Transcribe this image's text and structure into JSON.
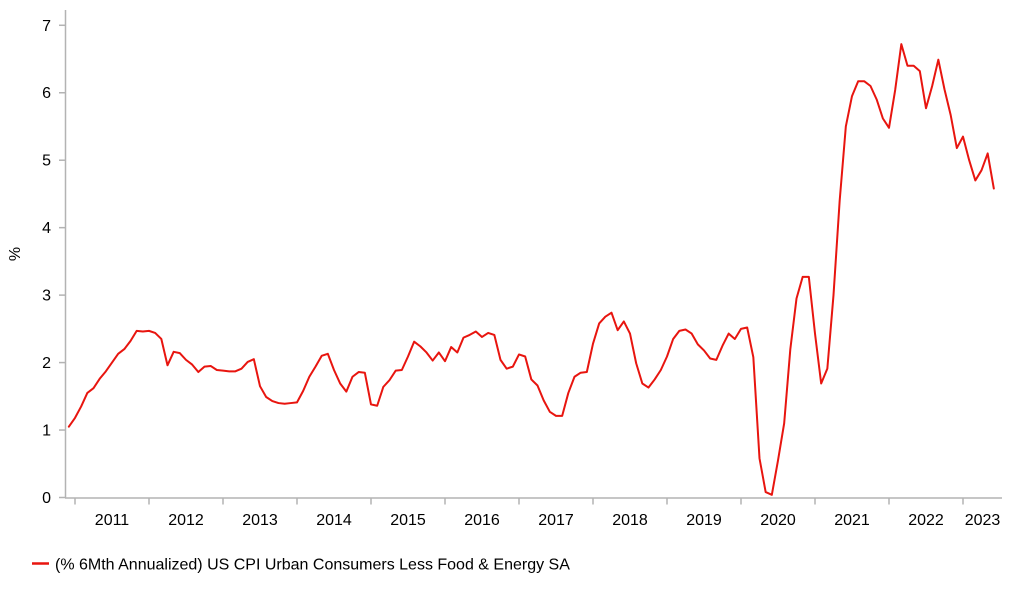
{
  "chart": {
    "y_axis": {
      "title": "%",
      "ticks": [
        0,
        1,
        2,
        3,
        4,
        5,
        6,
        7
      ],
      "min": 0,
      "max": 7
    },
    "x_axis": {
      "years": [
        2011,
        2012,
        2013,
        2014,
        2015,
        2016,
        2017,
        2018,
        2019,
        2020,
        2021,
        2022,
        2023
      ]
    },
    "legend": {
      "label": "(% 6Mth Annualized) US CPI Urban Consumers Less Food & Energy SA",
      "color": "#e8150f"
    },
    "colors": {
      "line": "#e8150f",
      "axis": "#b3b3b3",
      "text": "#000000",
      "background": "#ffffff"
    }
  },
  "chart_data": {
    "type": "line",
    "title": "",
    "xlabel": "",
    "ylabel": "%",
    "ylim": [
      0,
      7
    ],
    "grid": false,
    "legend_position": "bottom-left",
    "frequency": "monthly",
    "start_year": 2010,
    "start_month": 12,
    "end_year": 2023,
    "end_month": 6,
    "x_tick_labels": [
      "2011",
      "2012",
      "2013",
      "2014",
      "2015",
      "2016",
      "2017",
      "2018",
      "2019",
      "2020",
      "2021",
      "2022",
      "2023"
    ],
    "series": [
      {
        "name": "(% 6Mth Annualized) US CPI Urban Consumers Less Food & Energy SA",
        "color": "#e8150f",
        "values": [
          1.05,
          1.18,
          1.35,
          1.55,
          1.62,
          1.76,
          1.87,
          2.0,
          2.13,
          2.2,
          2.32,
          2.47,
          2.46,
          2.47,
          2.44,
          2.35,
          1.96,
          2.16,
          2.14,
          2.04,
          1.97,
          1.86,
          1.94,
          1.95,
          1.89,
          1.88,
          1.87,
          1.87,
          1.91,
          2.01,
          2.05,
          1.65,
          1.49,
          1.43,
          1.4,
          1.39,
          1.4,
          1.41,
          1.58,
          1.79,
          1.94,
          2.1,
          2.13,
          1.89,
          1.69,
          1.57,
          1.79,
          1.86,
          1.85,
          1.38,
          1.36,
          1.64,
          1.74,
          1.88,
          1.89,
          2.09,
          2.31,
          2.24,
          2.15,
          2.03,
          2.15,
          2.02,
          2.23,
          2.15,
          2.37,
          2.41,
          2.46,
          2.38,
          2.44,
          2.41,
          2.04,
          1.91,
          1.94,
          2.12,
          2.09,
          1.75,
          1.66,
          1.44,
          1.27,
          1.21,
          1.21,
          1.55,
          1.79,
          1.85,
          1.86,
          2.28,
          2.58,
          2.68,
          2.74,
          2.48,
          2.61,
          2.43,
          1.99,
          1.69,
          1.63,
          1.75,
          1.89,
          2.09,
          2.35,
          2.47,
          2.49,
          2.43,
          2.27,
          2.18,
          2.06,
          2.04,
          2.25,
          2.43,
          2.35,
          2.5,
          2.52,
          2.08,
          0.58,
          0.08,
          0.04,
          0.55,
          1.1,
          2.2,
          2.95,
          3.27,
          3.27,
          2.43,
          1.69,
          1.91,
          3.0,
          4.4,
          5.5,
          5.95,
          6.17,
          6.17,
          6.1,
          5.9,
          5.62,
          5.48,
          6.04,
          6.72,
          6.4,
          6.4,
          6.32,
          5.77,
          6.1,
          6.49,
          6.05,
          5.67,
          5.18,
          5.35,
          5.0,
          4.7,
          4.85,
          5.1,
          4.58
        ]
      }
    ]
  }
}
